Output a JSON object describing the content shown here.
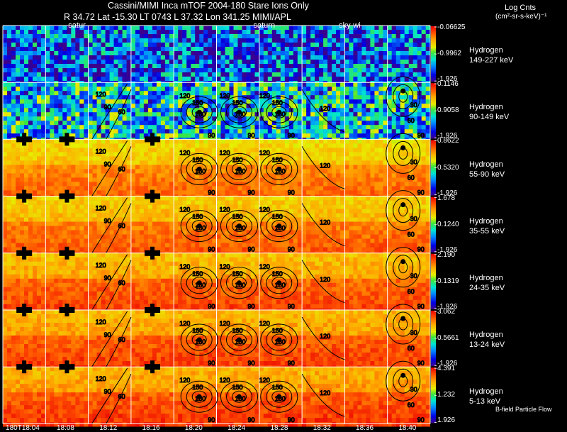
{
  "header": {
    "title": "Cassini/MIMI Inca mTOF  2004-180   Stare   Ions Only",
    "subtitle": "R       34.72 Lat -15.30 LT 0743 L         37.32 Lon        341.25  MIMI/APL",
    "colorbar_title": "Log Cnts",
    "colorbar_unit": "(cm²-sr-s-keV)⁻¹"
  },
  "footer_note": "B-field Particle Flow",
  "chart_data": {
    "type": "heatmap",
    "title": "Cassini/MIMI Inca mTOF  2004-180   Stare   Ions Only",
    "x_time_labels": [
      "180T18:04",
      "18:08",
      "18:12",
      "18:16",
      "18:20",
      "18:24",
      "18:28",
      "18:32",
      "18:36",
      "18:40"
    ],
    "frames_per_row": 10,
    "frame_markers": [
      {
        "frame": 1,
        "label": "satur"
      },
      {
        "frame": 5,
        "label": "saturn"
      },
      {
        "frame": 7,
        "label": "sky-wi"
      }
    ],
    "contour_levels": [
      30,
      60,
      90,
      120,
      150,
      180
    ],
    "panels": [
      {
        "species": "Hydrogen",
        "energy": "149-227 keV",
        "cb_max": "-0.06625",
        "cb_mid": "-0.9962",
        "cb_min": "-1.926",
        "level": 0.22
      },
      {
        "species": "Hydrogen",
        "energy": "90-149 keV",
        "cb_max": "0.1146",
        "cb_mid": "0.9058",
        "cb_min": "-1.926",
        "level": 0.38
      },
      {
        "species": "Hydrogen",
        "energy": "55-90 keV",
        "cb_max": "0.8622",
        "cb_mid": "0.5320",
        "cb_min": "-1.926",
        "level": 0.78
      },
      {
        "species": "Hydrogen",
        "energy": "35-55 keV",
        "cb_max": "1.678",
        "cb_mid": "0.1240",
        "cb_min": "-1.926",
        "level": 0.8
      },
      {
        "species": "Hydrogen",
        "energy": "24-35 keV",
        "cb_max": "2.190",
        "cb_mid": "0.1319",
        "cb_min": "-1.926",
        "level": 0.83
      },
      {
        "species": "Hydrogen",
        "energy": "13-24 keV",
        "cb_max": "3.062",
        "cb_mid": "0.5661",
        "cb_min": "-1.926",
        "level": 0.84
      },
      {
        "species": "Hydrogen",
        "energy": "5-13 keV",
        "cb_max": "4.391",
        "cb_mid": "1.232",
        "cb_min": "1.926",
        "level": 0.85
      }
    ]
  }
}
